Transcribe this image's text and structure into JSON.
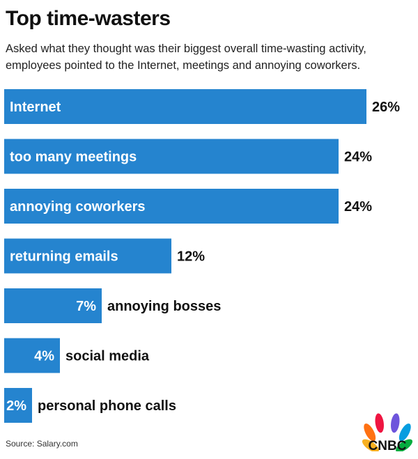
{
  "title": "Top time-wasters",
  "subtitle": "Asked what they thought was their biggest overall time-wasting activity, employees pointed to the Internet, meetings and annoying coworkers.",
  "source": "Source: Salary.com",
  "logo": {
    "text": "CNBC",
    "icon": "peacock-logo-icon"
  },
  "colors": {
    "bar": "#2584cf",
    "text": "#111111",
    "inside_text": "#ffffff"
  },
  "chart_data": {
    "type": "bar",
    "orientation": "horizontal",
    "title": "Top time-wasters",
    "xlabel": "",
    "ylabel": "",
    "xlim": [
      0,
      26
    ],
    "grid": false,
    "categories": [
      "Internet",
      "too many meetings",
      "annoying coworkers",
      "returning emails",
      "annoying bosses",
      "social media",
      "personal phone calls"
    ],
    "values": [
      26,
      24,
      24,
      12,
      7,
      4,
      2
    ],
    "value_labels": [
      "26%",
      "24%",
      "24%",
      "12%",
      "7%",
      "4%",
      "2%"
    ]
  }
}
